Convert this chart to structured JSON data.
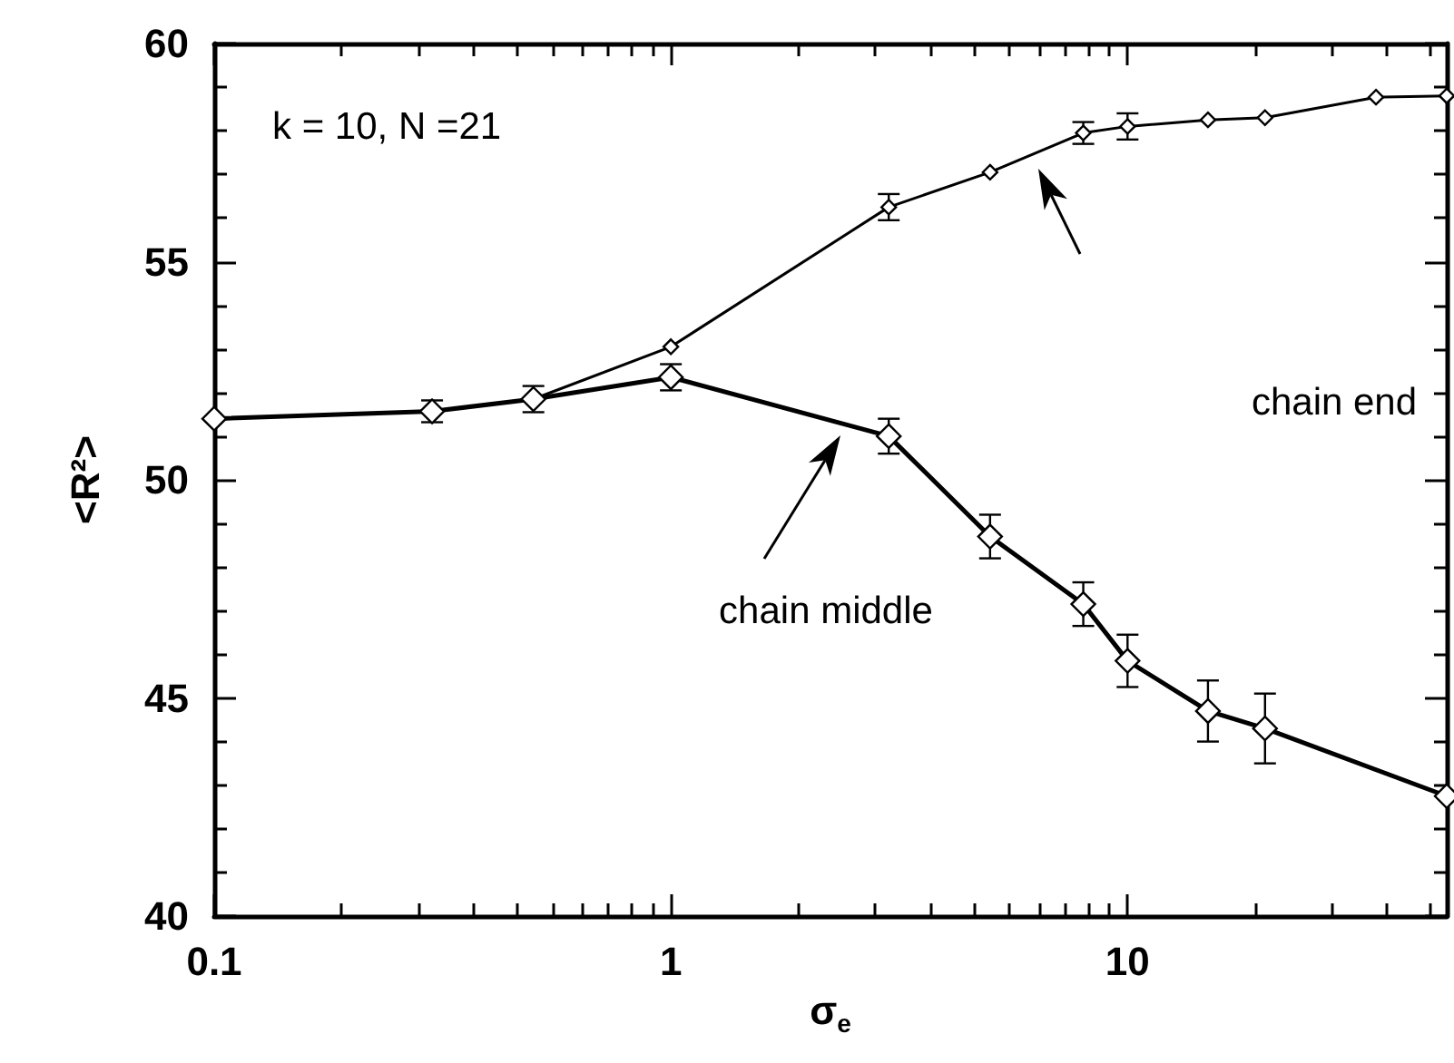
{
  "chart_data": {
    "type": "line",
    "xlabel": "σ$_{e}$",
    "ylabel": "<R²>",
    "log": "x",
    "xlim": [
      0.1,
      50
    ],
    "xticks": [
      0.1,
      1,
      10
    ],
    "ylim": [
      40,
      60
    ],
    "yticks": [
      40,
      45,
      50,
      55,
      60
    ],
    "grid": false,
    "marker": "diamond",
    "line_style": "solid",
    "series": [
      {
        "color": "#000000",
        "x": [
          0.1,
          0.3,
          0.5,
          1,
          3,
          5,
          8,
          10,
          15,
          20,
          35,
          50
        ],
        "values": [
          51.4,
          51.57,
          51.85,
          53.05,
          56.25,
          57.05,
          57.95,
          58.1,
          58.25,
          58.3,
          58.77,
          58.8
        ],
        "errors": [
          null,
          null,
          null,
          null,
          0.3,
          null,
          0.25,
          0.3,
          null,
          null,
          null,
          null
        ]
      },
      {
        "color": "#000000",
        "x": [
          0.1,
          0.3,
          0.5,
          1,
          3,
          5,
          8,
          10,
          15,
          20,
          50
        ],
        "values": [
          51.4,
          51.57,
          51.85,
          52.35,
          51.0,
          48.7,
          47.15,
          45.85,
          44.7,
          44.3,
          42.75
        ],
        "errors": [
          null,
          0.25,
          0.3,
          0.3,
          0.4,
          0.5,
          0.5,
          0.6,
          0.7,
          0.8,
          null
        ]
      }
    ],
    "annotations": [
      "k = 10, N =21",
      "chain end",
      "chain middle"
    ]
  }
}
